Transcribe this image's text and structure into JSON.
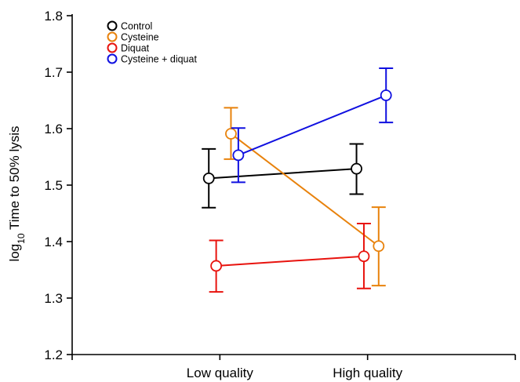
{
  "chart_data": {
    "type": "line",
    "title": "",
    "xlabel": "",
    "ylabel": {
      "prefix": "log",
      "subscript": "10",
      "suffix": " Time to 50% lysis"
    },
    "ylim": [
      1.2,
      1.8
    ],
    "yticks": [
      "1.2",
      "1.3",
      "1.4",
      "1.5",
      "1.6",
      "1.7",
      "1.8"
    ],
    "categories": [
      "Low quality",
      "High quality"
    ],
    "grid": false,
    "legend_position": "top-left",
    "series": [
      {
        "name": "Control",
        "color": "#000000",
        "x_offset": -0.075,
        "values": [
          1.512,
          1.529
        ],
        "err_low": [
          1.46,
          1.484
        ],
        "err_high": [
          1.564,
          1.573
        ]
      },
      {
        "name": "Cysteine",
        "color": "#E8820C",
        "x_offset": 0.075,
        "values": [
          1.591,
          1.392
        ],
        "err_low": [
          1.546,
          1.322
        ],
        "err_high": [
          1.637,
          1.461
        ]
      },
      {
        "name": "Diquat",
        "color": "#E8130E",
        "x_offset": -0.025,
        "values": [
          1.357,
          1.374
        ],
        "err_low": [
          1.311,
          1.317
        ],
        "err_high": [
          1.402,
          1.432
        ]
      },
      {
        "name": "Cysteine + diquat",
        "color": "#1010E0",
        "x_offset": 0.125,
        "values": [
          1.553,
          1.659
        ],
        "err_low": [
          1.505,
          1.611
        ],
        "err_high": [
          1.601,
          1.707
        ]
      }
    ]
  }
}
